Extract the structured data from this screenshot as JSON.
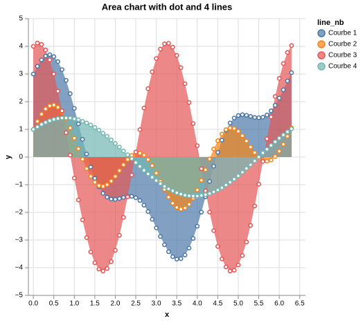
{
  "chart_data": {
    "type": "area",
    "title": "Area chart with dot and 4 lines",
    "x_label": "x",
    "y_label": "y",
    "legend_title": "line_nb",
    "legend": "right",
    "grid": true,
    "points": true,
    "x": [
      0,
      0.1,
      0.2,
      0.3,
      0.4,
      0.5,
      0.6,
      0.7,
      0.8,
      0.9,
      1.0,
      1.1,
      1.2,
      1.3,
      1.4,
      1.5,
      1.6,
      1.7,
      1.8,
      1.9,
      2.0,
      2.1,
      2.2,
      2.3,
      2.4,
      2.5,
      2.6,
      2.7,
      2.8,
      2.9,
      3.0,
      3.1,
      3.2,
      3.3,
      3.4,
      3.5,
      3.6,
      3.7,
      3.8,
      3.9,
      4.0,
      4.1,
      4.2,
      4.3,
      4.4,
      4.5,
      4.6,
      4.7,
      4.8,
      4.9,
      5.0,
      5.1,
      5.2,
      5.3,
      5.4,
      5.5,
      5.6,
      5.7,
      5.8,
      5.9,
      6.0,
      6.1,
      6.2,
      6.3
    ],
    "series": [
      {
        "name": "Courbe 1",
        "color": "#4c78a8",
        "values": [
          3.0,
          3.28,
          3.51,
          3.65,
          3.7,
          3.63,
          3.45,
          3.16,
          2.77,
          2.29,
          1.76,
          1.2,
          0.64,
          0.11,
          -0.36,
          -0.77,
          -1.08,
          -1.31,
          -1.45,
          -1.52,
          -1.53,
          -1.5,
          -1.46,
          -1.42,
          -1.42,
          -1.47,
          -1.57,
          -1.74,
          -1.97,
          -2.25,
          -2.56,
          -2.87,
          -3.17,
          -3.42,
          -3.6,
          -3.69,
          -3.67,
          -3.54,
          -3.29,
          -2.94,
          -2.5,
          -1.99,
          -1.44,
          -0.88,
          -0.33,
          0.17,
          0.61,
          0.96,
          1.23,
          1.41,
          1.5,
          1.53,
          1.51,
          1.47,
          1.43,
          1.42,
          1.44,
          1.52,
          1.67,
          1.87,
          2.13,
          2.43,
          2.75,
          3.05
        ]
      },
      {
        "name": "Courbe 2",
        "color": "#f58518",
        "values": [
          1.0,
          1.29,
          1.55,
          1.74,
          1.85,
          1.88,
          1.8,
          1.63,
          1.37,
          1.05,
          0.68,
          0.3,
          -0.08,
          -0.42,
          -0.7,
          -0.91,
          -1.03,
          -1.06,
          -1.0,
          -0.87,
          -0.7,
          -0.49,
          -0.28,
          -0.09,
          0.06,
          0.14,
          0.14,
          0.07,
          -0.09,
          -0.31,
          -0.58,
          -0.88,
          -1.17,
          -1.45,
          -1.67,
          -1.82,
          -1.88,
          -1.84,
          -1.71,
          -1.49,
          -1.19,
          -0.84,
          -0.46,
          -0.07,
          0.29,
          0.59,
          0.83,
          0.99,
          1.05,
          1.03,
          0.93,
          0.77,
          0.58,
          0.36,
          0.16,
          0.0,
          -0.11,
          -0.15,
          -0.11,
          0.02,
          0.21,
          0.46,
          0.75,
          1.05
        ]
      },
      {
        "name": "Courbe 3",
        "color": "#e45756",
        "values": [
          4.0,
          4.12,
          4.07,
          3.87,
          3.51,
          3.0,
          2.38,
          1.67,
          0.88,
          0.07,
          -0.76,
          -1.55,
          -2.27,
          -2.91,
          -3.43,
          -3.82,
          -4.05,
          -4.12,
          -4.03,
          -3.78,
          -3.37,
          -2.83,
          -2.18,
          -1.44,
          -0.65,
          0.18,
          0.99,
          1.77,
          2.47,
          3.08,
          3.56,
          3.9,
          4.09,
          4.11,
          3.97,
          3.67,
          3.23,
          2.65,
          1.97,
          1.21,
          0.41,
          -0.42,
          -1.22,
          -1.99,
          -2.66,
          -3.23,
          -3.68,
          -3.97,
          -4.12,
          -4.09,
          -3.9,
          -3.56,
          -3.07,
          -2.47,
          -1.77,
          -0.98,
          -0.16,
          0.66,
          1.45,
          2.19,
          2.84,
          3.38,
          3.78,
          4.03
        ]
      },
      {
        "name": "Courbe 4",
        "color": "#72b7b2",
        "values": [
          1.0,
          1.09,
          1.18,
          1.25,
          1.31,
          1.36,
          1.39,
          1.41,
          1.41,
          1.41,
          1.38,
          1.35,
          1.29,
          1.23,
          1.16,
          1.07,
          0.97,
          0.86,
          0.75,
          0.62,
          0.49,
          0.36,
          0.22,
          0.08,
          -0.06,
          -0.2,
          -0.34,
          -0.48,
          -0.61,
          -0.73,
          -0.85,
          -0.96,
          -1.06,
          -1.15,
          -1.22,
          -1.29,
          -1.34,
          -1.38,
          -1.4,
          -1.41,
          -1.41,
          -1.39,
          -1.36,
          -1.32,
          -1.26,
          -1.19,
          -1.11,
          -1.01,
          -0.91,
          -0.8,
          -0.68,
          -0.55,
          -0.41,
          -0.28,
          -0.14,
          0.0,
          0.15,
          0.28,
          0.42,
          0.55,
          0.68,
          0.8,
          0.91,
          1.02
        ]
      }
    ],
    "xlim": [
      -0.12,
      6.64
    ],
    "xticks": [
      {
        "value": 0,
        "label": "0.0"
      },
      0.5,
      {
        "value": 1,
        "label": "1.0"
      },
      1.5,
      {
        "value": 2,
        "label": "2.0"
      },
      2.5,
      {
        "value": 3,
        "label": "3.0"
      },
      3.5,
      {
        "value": 4,
        "label": "4.0"
      },
      4.5,
      {
        "value": 5,
        "label": "5.0"
      },
      5.5,
      {
        "value": 6,
        "label": "6.0"
      },
      6.5
    ],
    "ylim": [
      -5,
      5
    ],
    "yticks": [
      {
        "value": -5,
        "label": "−5"
      },
      {
        "value": -4,
        "label": "−4"
      },
      {
        "value": -3,
        "label": "−3"
      },
      {
        "value": -2,
        "label": "−2"
      },
      {
        "value": -1,
        "label": "−1"
      },
      0,
      1,
      2,
      3,
      4,
      5
    ]
  }
}
